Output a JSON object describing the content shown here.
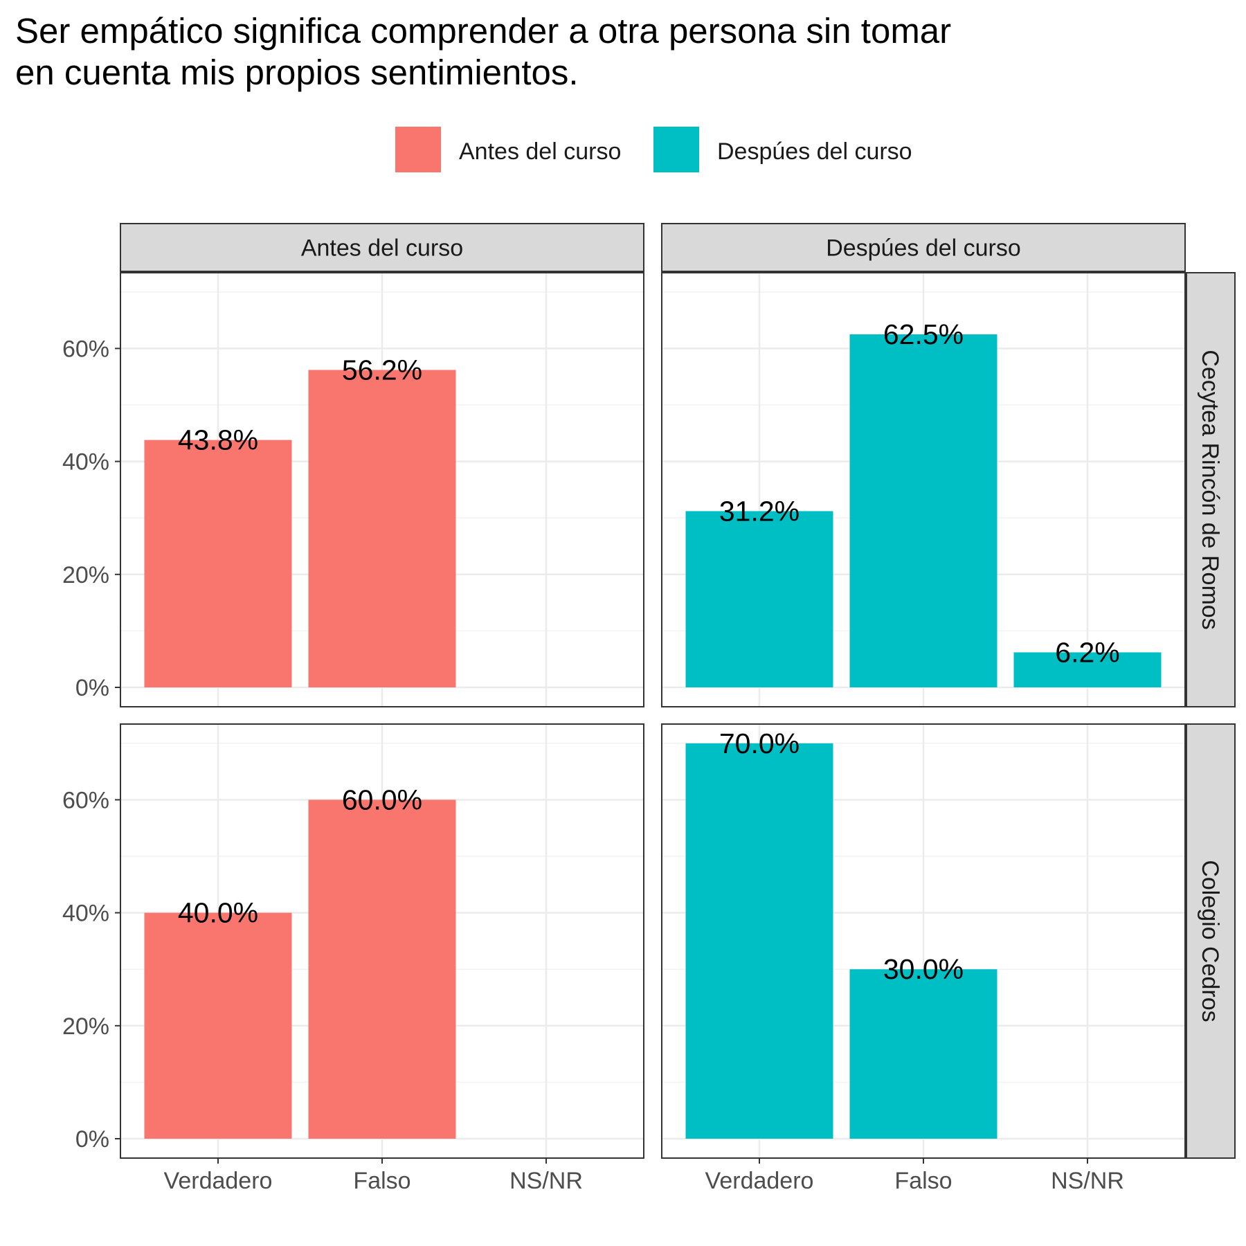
{
  "chart_data": {
    "type": "bar",
    "title": "Ser empático significa comprender a otra persona sin tomar en cuenta mis propios sentimientos.",
    "title_lines": [
      "Ser empático significa comprender a otra persona sin tomar",
      "en cuenta mis propios sentimientos."
    ],
    "categories": [
      "Verdadero",
      "Falso",
      "NS/NR"
    ],
    "columns": [
      "Antes del curso",
      "Despúes del curso"
    ],
    "rows": [
      "Cecytea Rincón de Romos",
      "Colegio Cedros"
    ],
    "legend": [
      {
        "label": "Antes del curso",
        "color": "#F8766D"
      },
      {
        "label": "Despúes del curso",
        "color": "#00BFC4"
      }
    ],
    "legend_position": "top",
    "y_ticks": [
      "0%",
      "20%",
      "40%",
      "60%"
    ],
    "ylim": [
      0,
      73
    ],
    "grid": true,
    "panels": [
      {
        "row": "Cecytea Rincón de Romos",
        "column": "Antes del curso",
        "values": [
          43.8,
          56.2,
          null
        ],
        "labels": [
          "43.8%",
          "56.2%",
          ""
        ]
      },
      {
        "row": "Cecytea Rincón de Romos",
        "column": "Despúes del curso",
        "values": [
          31.2,
          62.5,
          6.2
        ],
        "labels": [
          "31.2%",
          "62.5%",
          "6.2%"
        ]
      },
      {
        "row": "Colegio Cedros",
        "column": "Antes del curso",
        "values": [
          40.0,
          60.0,
          null
        ],
        "labels": [
          "40.0%",
          "60.0%",
          ""
        ]
      },
      {
        "row": "Colegio Cedros",
        "column": "Despúes del curso",
        "values": [
          70.0,
          30.0,
          null
        ],
        "labels": [
          "70.0%",
          "30.0%",
          ""
        ]
      }
    ]
  }
}
